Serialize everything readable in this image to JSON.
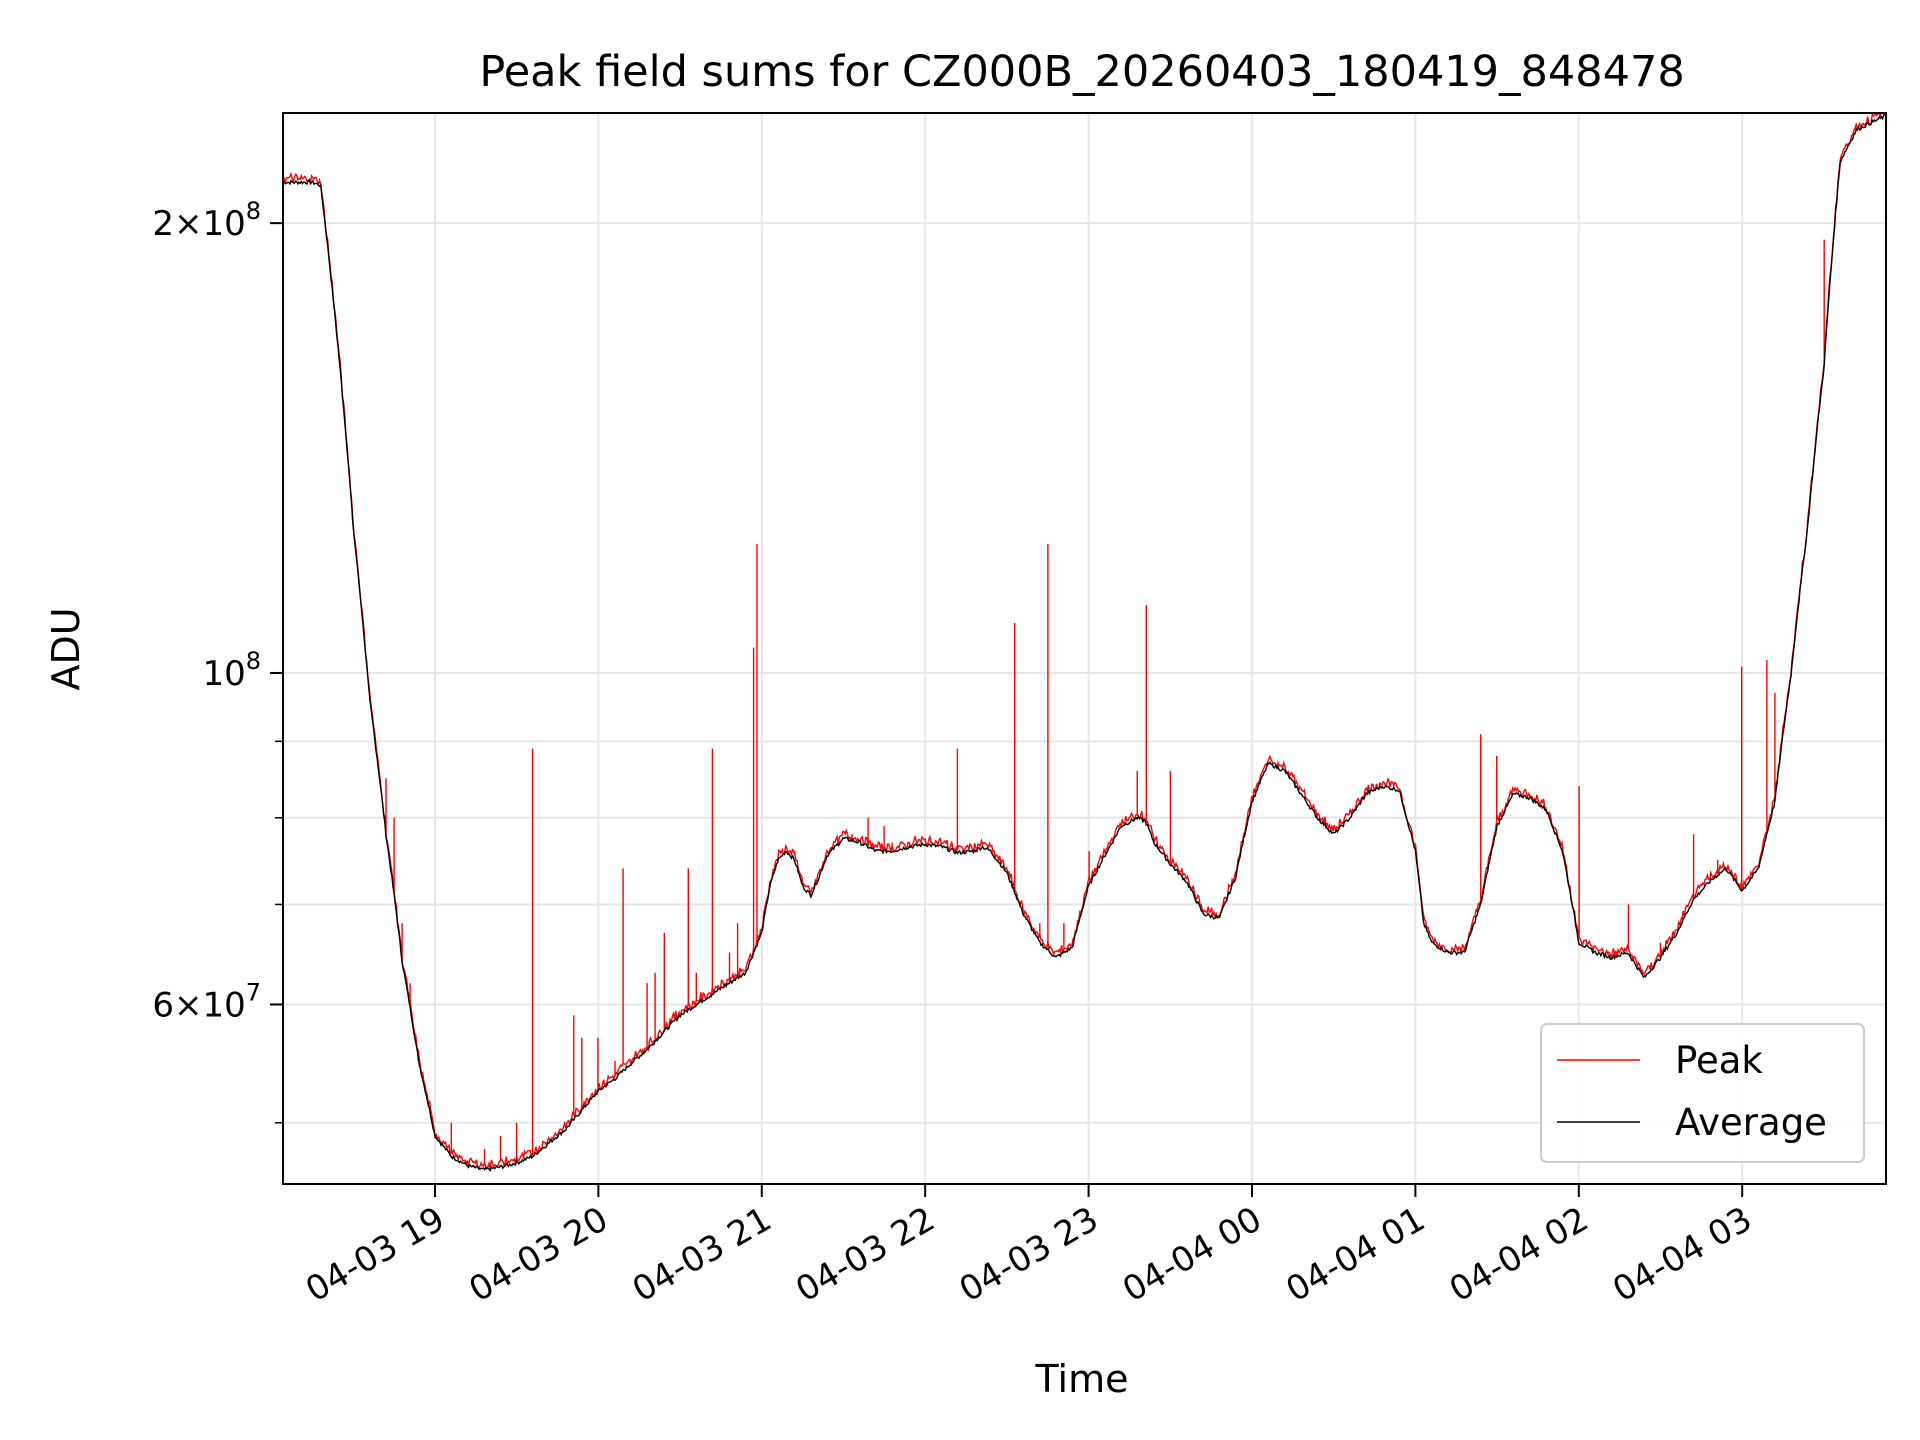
{
  "chart_data": {
    "type": "line",
    "title": "Peak field sums for CZ000B_20260403_180419_848478",
    "xlabel": "Time",
    "ylabel": "ADU",
    "yscale": "log",
    "ylim": [
      45500000,
      237000000
    ],
    "xlim_hours": [
      -0.93,
      8.88
    ],
    "x_tick_labels": [
      "04-03 19",
      "04-03 20",
      "04-03 21",
      "04-03 22",
      "04-03 23",
      "04-04 00",
      "04-04 01",
      "04-04 02",
      "04-04 03"
    ],
    "x_tick_hours": [
      0,
      1,
      2,
      3,
      4,
      5,
      6,
      7,
      8
    ],
    "y_tick_major": [
      {
        "value": 100000000,
        "mantissa": "",
        "exp": "8"
      },
      {
        "value": 200000000,
        "mantissa": "2",
        "exp": "8"
      },
      {
        "value": 60000000,
        "mantissa": "6",
        "exp": "7"
      }
    ],
    "y_tick_minor": [
      50000000,
      70000000,
      80000000,
      90000000
    ],
    "grid": true,
    "legend_position": "lower-right",
    "series": [
      {
        "name": "Peak",
        "color": "#ff0000"
      },
      {
        "name": "Average",
        "color": "#000000"
      }
    ],
    "average_points": [
      [
        -0.93,
        213
      ],
      [
        -0.75,
        213
      ],
      [
        -0.7,
        212
      ],
      [
        -0.6,
        168
      ],
      [
        -0.5,
        125
      ],
      [
        -0.4,
        96
      ],
      [
        -0.3,
        78
      ],
      [
        -0.2,
        64
      ],
      [
        -0.1,
        55
      ],
      [
        0.0,
        49
      ],
      [
        0.1,
        47.5
      ],
      [
        0.2,
        46.8
      ],
      [
        0.3,
        46.5
      ],
      [
        0.4,
        46.7
      ],
      [
        0.5,
        47.0
      ],
      [
        0.6,
        47.5
      ],
      [
        0.7,
        48.5
      ],
      [
        0.8,
        49.5
      ],
      [
        0.9,
        51.0
      ],
      [
        1.0,
        52.5
      ],
      [
        1.1,
        53.5
      ],
      [
        1.2,
        54.8
      ],
      [
        1.3,
        56.0
      ],
      [
        1.4,
        57.5
      ],
      [
        1.5,
        59.0
      ],
      [
        1.6,
        60.0
      ],
      [
        1.7,
        61.0
      ],
      [
        1.8,
        62.0
      ],
      [
        1.9,
        63.0
      ],
      [
        2.0,
        67.0
      ],
      [
        2.05,
        72.0
      ],
      [
        2.1,
        75.0
      ],
      [
        2.15,
        76.0
      ],
      [
        2.2,
        75.0
      ],
      [
        2.25,
        72.0
      ],
      [
        2.3,
        71.0
      ],
      [
        2.35,
        73.0
      ],
      [
        2.4,
        75.5
      ],
      [
        2.5,
        77.5
      ],
      [
        2.6,
        77.0
      ],
      [
        2.7,
        76.0
      ],
      [
        2.8,
        76.0
      ],
      [
        2.9,
        76.5
      ],
      [
        3.0,
        76.8
      ],
      [
        3.1,
        76.5
      ],
      [
        3.2,
        75.8
      ],
      [
        3.3,
        76.0
      ],
      [
        3.35,
        76.5
      ],
      [
        3.4,
        76.0
      ],
      [
        3.5,
        73.5
      ],
      [
        3.6,
        69.0
      ],
      [
        3.7,
        66.0
      ],
      [
        3.8,
        64.5
      ],
      [
        3.9,
        65.5
      ],
      [
        4.0,
        72.0
      ],
      [
        4.1,
        75.5
      ],
      [
        4.2,
        79.0
      ],
      [
        4.3,
        80.0
      ],
      [
        4.35,
        79.5
      ],
      [
        4.4,
        77.0
      ],
      [
        4.5,
        74.5
      ],
      [
        4.6,
        72.5
      ],
      [
        4.7,
        69.0
      ],
      [
        4.8,
        68.5
      ],
      [
        4.9,
        73.0
      ],
      [
        5.0,
        82.0
      ],
      [
        5.1,
        87.0
      ],
      [
        5.2,
        86.0
      ],
      [
        5.3,
        83.0
      ],
      [
        5.4,
        80.0
      ],
      [
        5.5,
        78.0
      ],
      [
        5.6,
        80.0
      ],
      [
        5.7,
        83.0
      ],
      [
        5.8,
        84.0
      ],
      [
        5.9,
        83.5
      ],
      [
        6.0,
        76.0
      ],
      [
        6.05,
        68.0
      ],
      [
        6.1,
        66.0
      ],
      [
        6.2,
        65.0
      ],
      [
        6.3,
        65.0
      ],
      [
        6.4,
        70.0
      ],
      [
        6.5,
        79.0
      ],
      [
        6.6,
        83.0
      ],
      [
        6.7,
        82.5
      ],
      [
        6.8,
        81.0
      ],
      [
        6.9,
        76.0
      ],
      [
        7.0,
        66.0
      ],
      [
        7.1,
        65.0
      ],
      [
        7.2,
        64.5
      ],
      [
        7.3,
        65.0
      ],
      [
        7.4,
        62.5
      ],
      [
        7.5,
        64.5
      ],
      [
        7.6,
        67.0
      ],
      [
        7.7,
        70.5
      ],
      [
        7.8,
        72.5
      ],
      [
        7.9,
        74.0
      ],
      [
        8.0,
        71.5
      ],
      [
        8.1,
        74.0
      ],
      [
        8.2,
        82.0
      ],
      [
        8.3,
        100.0
      ],
      [
        8.4,
        125.0
      ],
      [
        8.5,
        160.0
      ],
      [
        8.6,
        220.0
      ],
      [
        8.7,
        231.0
      ],
      [
        8.88,
        236.0
      ]
    ],
    "peak_spikes": [
      [
        -0.4,
        96
      ],
      [
        -0.3,
        85
      ],
      [
        -0.25,
        80
      ],
      [
        -0.2,
        68
      ],
      [
        -0.15,
        62
      ],
      [
        -0.1,
        55
      ],
      [
        0.1,
        50
      ],
      [
        0.3,
        48
      ],
      [
        0.4,
        49
      ],
      [
        0.5,
        50
      ],
      [
        0.6,
        89
      ],
      [
        0.85,
        59
      ],
      [
        0.9,
        57
      ],
      [
        1.0,
        57
      ],
      [
        1.1,
        55
      ],
      [
        1.15,
        74
      ],
      [
        1.3,
        62
      ],
      [
        1.35,
        63
      ],
      [
        1.4,
        67
      ],
      [
        1.5,
        59
      ],
      [
        1.55,
        74
      ],
      [
        1.6,
        63
      ],
      [
        1.65,
        61
      ],
      [
        1.7,
        89
      ],
      [
        1.8,
        65
      ],
      [
        1.85,
        68
      ],
      [
        1.95,
        104
      ],
      [
        1.97,
        122
      ],
      [
        2.2,
        76
      ],
      [
        2.45,
        77
      ],
      [
        2.55,
        78
      ],
      [
        2.65,
        80
      ],
      [
        2.75,
        79
      ],
      [
        2.8,
        77
      ],
      [
        3.0,
        77.5
      ],
      [
        3.2,
        89
      ],
      [
        3.5,
        74
      ],
      [
        3.55,
        108
      ],
      [
        3.6,
        70
      ],
      [
        3.7,
        68
      ],
      [
        3.75,
        122
      ],
      [
        3.85,
        68
      ],
      [
        4.0,
        76
      ],
      [
        4.3,
        86
      ],
      [
        4.35,
        111
      ],
      [
        4.5,
        86
      ],
      [
        4.6,
        73
      ],
      [
        6.4,
        91
      ],
      [
        6.5,
        88
      ],
      [
        7.0,
        84
      ],
      [
        7.3,
        70
      ],
      [
        7.5,
        66
      ],
      [
        7.7,
        78
      ],
      [
        7.85,
        75
      ],
      [
        8.0,
        101
      ],
      [
        8.15,
        102
      ],
      [
        8.2,
        97
      ],
      [
        8.5,
        195
      ]
    ]
  }
}
